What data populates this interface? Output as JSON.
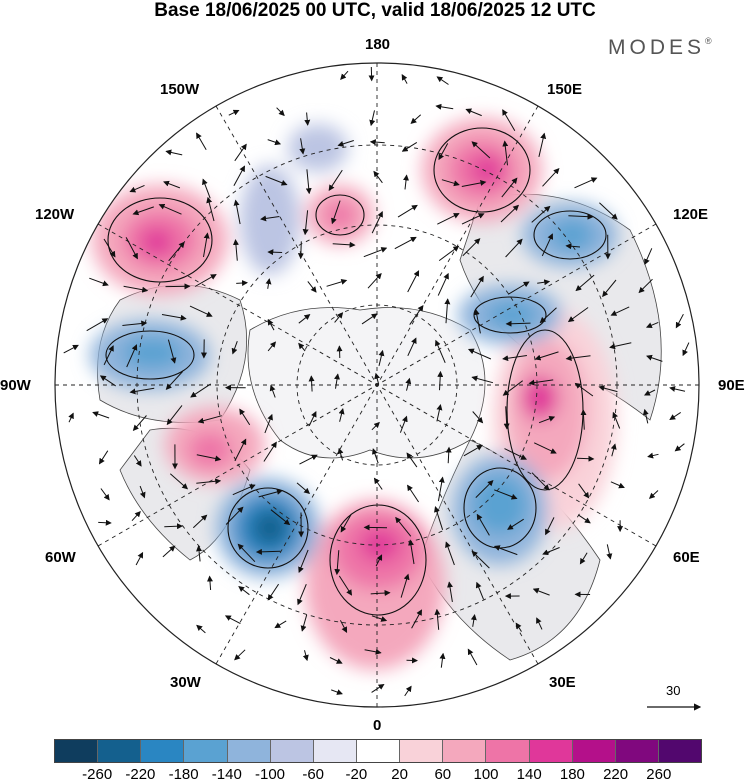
{
  "title": "Base 18/06/2025 00 UTC, valid 18/06/2025 12 UTC",
  "brand": {
    "text": "MODES",
    "mark": "®"
  },
  "map": {
    "projection": "north polar stereographic",
    "field": "geopotential height anomaly with wind vectors",
    "longitude_labels": {
      "top": "180",
      "bottom": "0",
      "left": "90W",
      "right": "90E",
      "upper_left": "150W",
      "upper_right": "150E",
      "mid_left": "120W",
      "mid_right": "120E",
      "low_left": "60W",
      "low_right": "60E",
      "bottom_left": "30W",
      "bottom_right": "30E"
    },
    "anomaly_centers": [
      {
        "sign": "positive",
        "lon": "150E",
        "strength": 180
      },
      {
        "sign": "positive",
        "lon": "120W",
        "strength": 180
      },
      {
        "sign": "positive",
        "lon": "165W",
        "strength": 100
      },
      {
        "sign": "positive",
        "lon": "90E",
        "strength": 180
      },
      {
        "sign": "positive",
        "lon": "0",
        "strength": 140
      },
      {
        "sign": "positive",
        "lon": "70W",
        "strength": 100
      },
      {
        "sign": "negative",
        "lon": "45W",
        "strength": -180
      },
      {
        "sign": "negative",
        "lon": "40E",
        "strength": -140
      },
      {
        "sign": "negative",
        "lon": "120E",
        "strength": -140
      },
      {
        "sign": "negative",
        "lon": "105E",
        "strength": -140
      },
      {
        "sign": "negative",
        "lon": "95W",
        "strength": -140
      },
      {
        "sign": "negative",
        "lon": "145W",
        "strength": -100
      }
    ],
    "reference_vector": "30"
  },
  "colorbar": {
    "ticks": [
      "-260",
      "-220",
      "-180",
      "-140",
      "-100",
      "-60",
      "-20",
      "20",
      "60",
      "100",
      "140",
      "180",
      "220",
      "260"
    ],
    "colors": [
      "#0f3d5e",
      "#14608e",
      "#2a86c2",
      "#5aa2d2",
      "#8fb4dc",
      "#bcc5e3",
      "#e6e7f3",
      "#ffffff",
      "#f9d2d9",
      "#f4a8bd",
      "#ee74a7",
      "#e0379a",
      "#b4108a",
      "#80087e",
      "#52076e"
    ]
  }
}
